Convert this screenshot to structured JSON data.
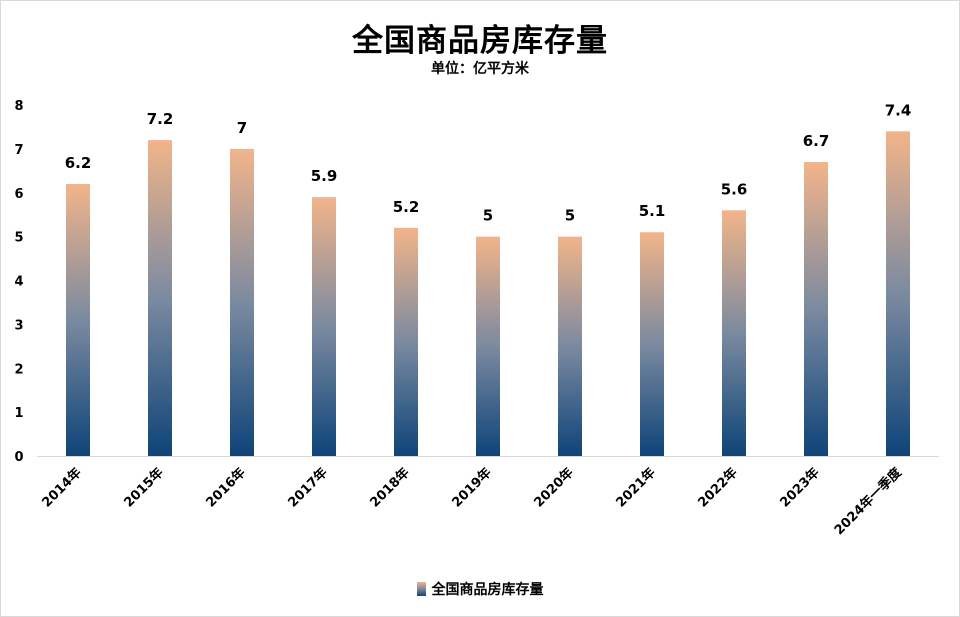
{
  "title": "全国商品房库存量",
  "subtitle": "单位：亿平方米",
  "legend": {
    "label": "全国商品房库存量",
    "swatch_icon": "gradient-bar-swatch"
  },
  "colors": {
    "bar_top": "#f2b48a",
    "bar_mid": "#7b8aa0",
    "bar_bottom": "#0e4479",
    "gridline": "#d9d9d9"
  },
  "chart_data": {
    "type": "bar",
    "title": "全国商品房库存量",
    "subtitle": "单位：亿平方米",
    "xlabel": "",
    "ylabel": "",
    "categories": [
      "2014年",
      "2015年",
      "2016年",
      "2017年",
      "2018年",
      "2019年",
      "2020年",
      "2021年",
      "2022年",
      "2023年",
      "2024年一季度"
    ],
    "series": [
      {
        "name": "全国商品房库存量",
        "values": [
          6.2,
          7.2,
          7,
          5.9,
          5.2,
          5,
          5,
          5.1,
          5.6,
          6.7,
          7.4
        ]
      }
    ],
    "ylim": [
      0,
      8
    ],
    "yticks": [
      0,
      1,
      2,
      3,
      4,
      5,
      6,
      7,
      8
    ],
    "grid": false,
    "legend_position": "bottom",
    "data_labels": true
  }
}
